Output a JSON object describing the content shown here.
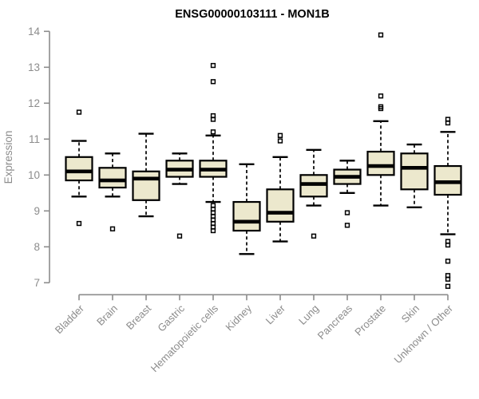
{
  "chart_data": {
    "type": "boxplot",
    "title": "ENSG00000103111 - MON1B",
    "ylabel": "Expression",
    "ylim": [
      7,
      14
    ],
    "yticks": [
      7,
      8,
      9,
      10,
      11,
      12,
      13,
      14
    ],
    "grid": false,
    "legend": "none",
    "colors": {
      "box_fill": "#ece8cd",
      "box_stroke": "#000000",
      "median": "#000000",
      "whisker": "#000000",
      "outlier": "#000000",
      "axis": "#8c8c8c",
      "tick_label": "#8c8c8c",
      "title": "#000000",
      "background": "#ffffff"
    },
    "categories": [
      "Bladder",
      "Brain",
      "Breast",
      "Gastric",
      "Hematopoietic cells",
      "Kidney",
      "Liver",
      "Lung",
      "Pancreas",
      "Prostate",
      "Skin",
      "Unknown / Other"
    ],
    "series": [
      {
        "category": "Bladder",
        "whisker_low": 9.4,
        "q1": 9.85,
        "median": 10.1,
        "q3": 10.5,
        "whisker_high": 10.95,
        "outliers": [
          11.75,
          8.65
        ]
      },
      {
        "category": "Brain",
        "whisker_low": 9.4,
        "q1": 9.65,
        "median": 9.85,
        "q3": 10.2,
        "whisker_high": 10.6,
        "outliers": [
          8.5
        ]
      },
      {
        "category": "Breast",
        "whisker_low": 8.85,
        "q1": 9.3,
        "median": 9.9,
        "q3": 10.1,
        "whisker_high": 11.15,
        "outliers": []
      },
      {
        "category": "Gastric",
        "whisker_low": 9.75,
        "q1": 9.95,
        "median": 10.15,
        "q3": 10.4,
        "whisker_high": 10.6,
        "outliers": [
          8.3
        ]
      },
      {
        "category": "Hematopoietic cells",
        "whisker_low": 9.25,
        "q1": 9.95,
        "median": 10.15,
        "q3": 10.4,
        "whisker_high": 11.1,
        "outliers": [
          13.05,
          12.6,
          11.65,
          11.55,
          11.2,
          9.15,
          9.05,
          8.95,
          8.85,
          8.75,
          8.65,
          8.55,
          8.45
        ]
      },
      {
        "category": "Kidney",
        "whisker_low": 7.8,
        "q1": 8.45,
        "median": 8.7,
        "q3": 9.25,
        "whisker_high": 10.3,
        "outliers": []
      },
      {
        "category": "Liver",
        "whisker_low": 8.15,
        "q1": 8.7,
        "median": 8.95,
        "q3": 9.6,
        "whisker_high": 10.5,
        "outliers": [
          11.1,
          10.95
        ]
      },
      {
        "category": "Lung",
        "whisker_low": 9.15,
        "q1": 9.4,
        "median": 9.75,
        "q3": 10.0,
        "whisker_high": 10.7,
        "outliers": [
          8.3
        ]
      },
      {
        "category": "Pancreas",
        "whisker_low": 9.5,
        "q1": 9.75,
        "median": 9.95,
        "q3": 10.15,
        "whisker_high": 10.4,
        "outliers": [
          8.95,
          8.6
        ]
      },
      {
        "category": "Prostate",
        "whisker_low": 9.15,
        "q1": 10.0,
        "median": 10.25,
        "q3": 10.65,
        "whisker_high": 11.5,
        "outliers": [
          13.9,
          12.2,
          11.9,
          11.85
        ]
      },
      {
        "category": "Skin",
        "whisker_low": 9.1,
        "q1": 9.6,
        "median": 10.2,
        "q3": 10.6,
        "whisker_high": 10.85,
        "outliers": []
      },
      {
        "category": "Unknown / Other",
        "whisker_low": 8.35,
        "q1": 9.45,
        "median": 9.8,
        "q3": 10.25,
        "whisker_high": 11.2,
        "outliers": [
          11.55,
          11.45,
          8.15,
          8.05,
          7.6,
          7.2,
          7.1,
          6.9
        ]
      }
    ]
  }
}
